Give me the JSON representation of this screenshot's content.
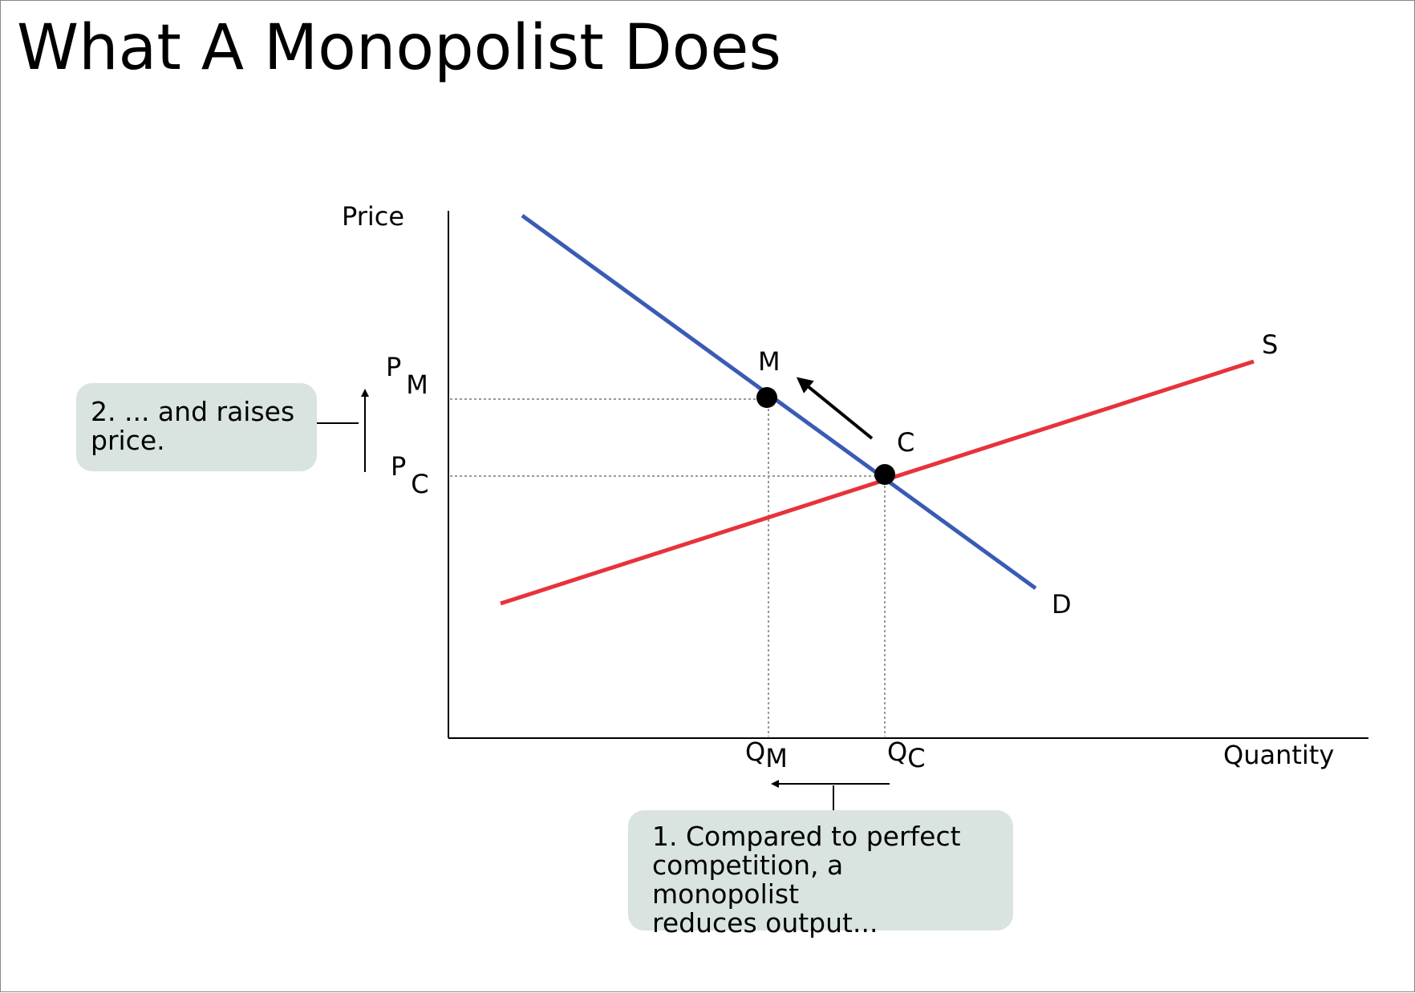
{
  "slide": {
    "title": "What A Monopolist Does"
  },
  "diagram": {
    "axes": {
      "y_label": "Price",
      "x_label": "Quantity"
    },
    "curves": {
      "demand": {
        "label": "D",
        "color": "#3a5bb5"
      },
      "supply": {
        "label": "S",
        "color": "#e8323c"
      }
    },
    "points": {
      "monopoly": {
        "label": "M"
      },
      "competitive": {
        "label": "C"
      }
    },
    "price_levels": {
      "monopoly": {
        "symbol": "P",
        "subscript": "M"
      },
      "competitive": {
        "symbol": "P",
        "subscript": "C"
      }
    },
    "quantity_levels": {
      "monopoly": {
        "symbol": "Q",
        "subscript": "M"
      },
      "competitive": {
        "symbol": "Q",
        "subscript": "C"
      }
    },
    "callouts": {
      "output": {
        "lines": [
          "1. Compared to perfect",
          "competition, a monopolist",
          "reduces output..."
        ],
        "background": "#d9e3e0"
      },
      "price": {
        "lines": [
          "2. ... and raises",
          "price."
        ],
        "background": "#d9e3e0"
      }
    }
  }
}
